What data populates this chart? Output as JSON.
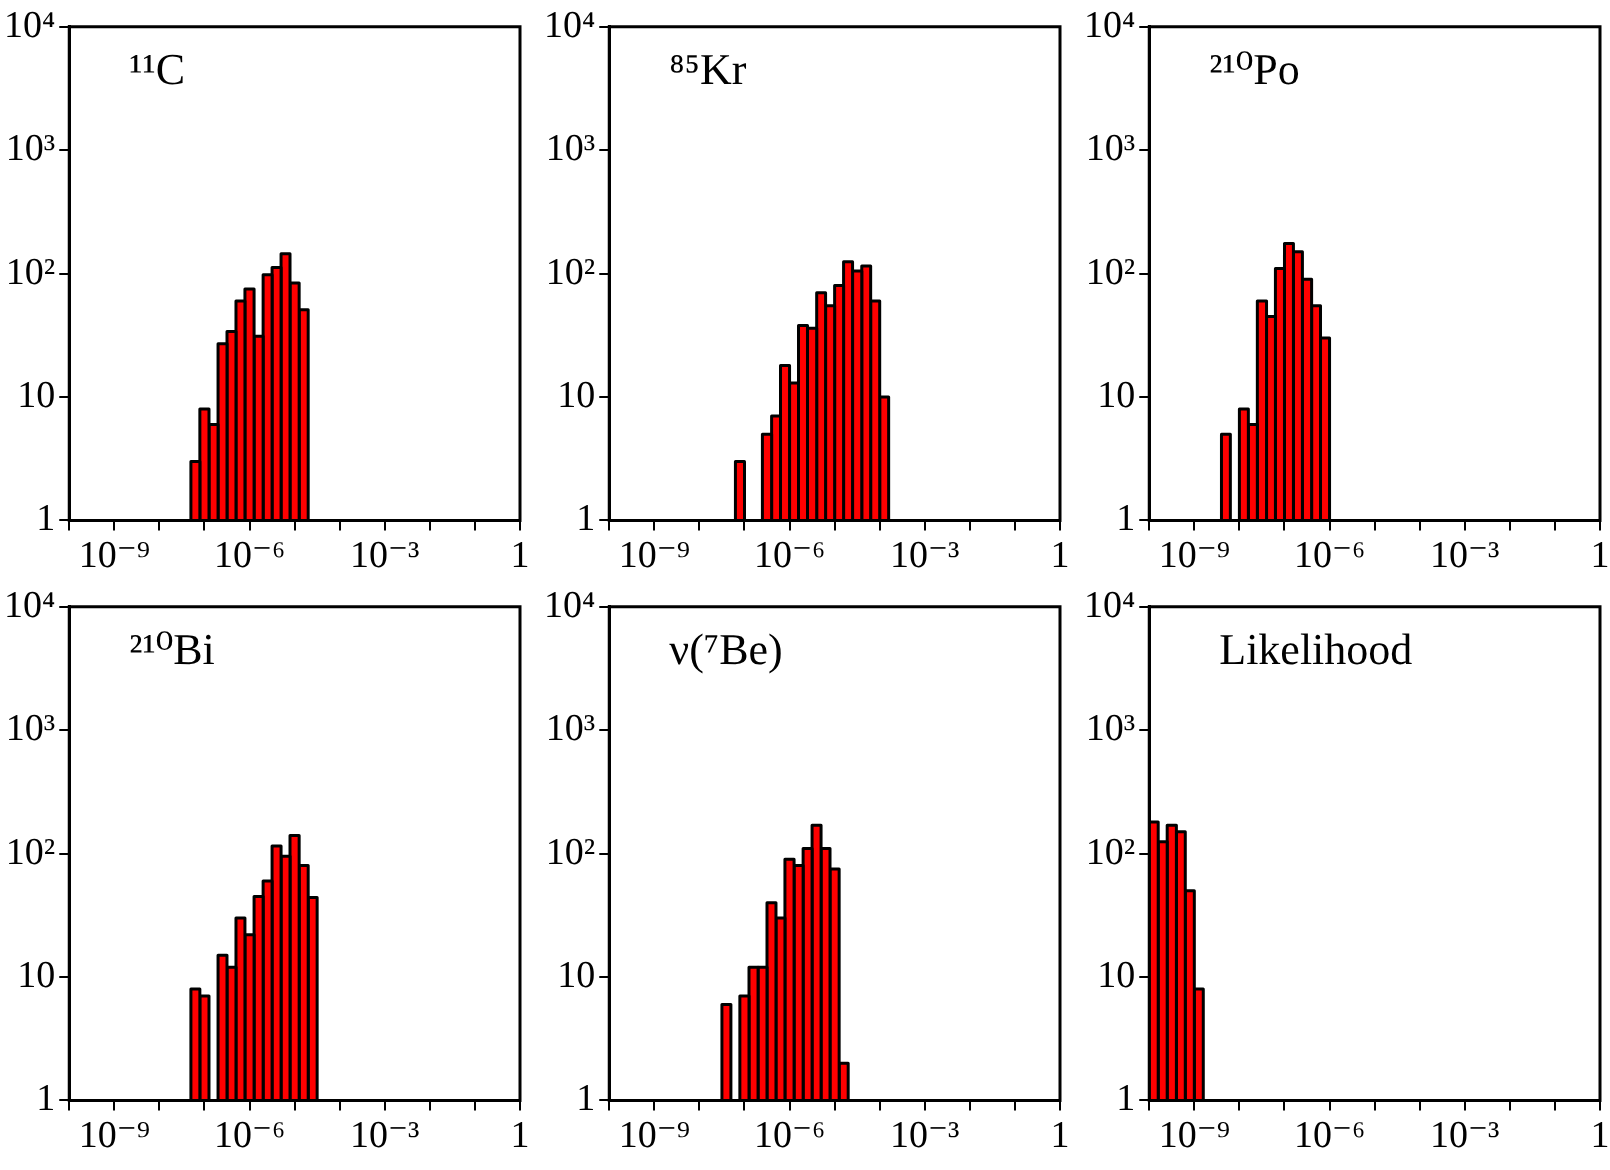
{
  "chart_data": [
    {
      "type": "histogram",
      "annotations": [
        "¹¹C"
      ],
      "color": "#ff0000",
      "log": "xy",
      "grid": false,
      "xlim": [
        1e-10,
        1
      ],
      "ylim": [
        1,
        10000
      ],
      "xticks": [
        {
          "value": 1e-10,
          "label": null
        },
        {
          "value": 1e-09,
          "label": "10⁻⁹"
        },
        {
          "value": 1e-08,
          "label": null
        },
        {
          "value": 1e-07,
          "label": null
        },
        {
          "value": 1e-06,
          "label": "10⁻⁶"
        },
        {
          "value": 1e-05,
          "label": null
        },
        {
          "value": 0.0001,
          "label": null
        },
        {
          "value": 0.001,
          "label": "10⁻³"
        },
        {
          "value": 0.01,
          "label": null
        },
        {
          "value": 0.1,
          "label": null
        },
        {
          "value": 1,
          "label": "1"
        }
      ],
      "yticks": [
        {
          "value": 1,
          "label": "1"
        },
        {
          "value": 10,
          "label": "10"
        },
        {
          "value": 100,
          "label": "10²"
        },
        {
          "value": 1000,
          "label": "10³"
        },
        {
          "value": 10000,
          "label": "10⁴"
        }
      ],
      "bins": [
        5e-08,
        7.9e-08,
        1.26e-07,
        2e-07,
        3.16e-07,
        5e-07,
        7.9e-07,
        1.26e-06,
        2e-06,
        3.16e-06,
        5e-06,
        7.9e-06,
        1.26e-05,
        2e-05
      ],
      "values": [
        3,
        8,
        6,
        27,
        34,
        60,
        75,
        31,
        98,
        112,
        145,
        84,
        51
      ]
    },
    {
      "type": "histogram",
      "annotations": [
        "⁸⁵Kr"
      ],
      "color": "#ff0000",
      "log": "xy",
      "grid": false,
      "xlim": [
        1e-10,
        1
      ],
      "ylim": [
        1,
        10000
      ],
      "xticks": [
        {
          "value": 1e-10,
          "label": null
        },
        {
          "value": 1e-09,
          "label": "10⁻⁹"
        },
        {
          "value": 1e-08,
          "label": null
        },
        {
          "value": 1e-07,
          "label": null
        },
        {
          "value": 1e-06,
          "label": "10⁻⁶"
        },
        {
          "value": 1e-05,
          "label": null
        },
        {
          "value": 0.0001,
          "label": null
        },
        {
          "value": 0.001,
          "label": "10⁻³"
        },
        {
          "value": 0.01,
          "label": null
        },
        {
          "value": 0.1,
          "label": null
        },
        {
          "value": 1,
          "label": "1"
        }
      ],
      "yticks": [
        {
          "value": 1,
          "label": "1"
        },
        {
          "value": 10,
          "label": "10"
        },
        {
          "value": 100,
          "label": "10²"
        },
        {
          "value": 1000,
          "label": "10³"
        },
        {
          "value": 10000,
          "label": "10⁴"
        }
      ],
      "bins": [
        6.3e-08,
        1e-07,
        2.5e-07,
        4e-07,
        6.3e-07,
        1e-06,
        1.58e-06,
        2.5e-06,
        4e-06,
        6.3e-06,
        1e-05,
        1.58e-05,
        2.5e-05,
        4e-05,
        6.3e-05,
        0.0001,
        0.000158
      ],
      "values": [
        3,
        null,
        5,
        7,
        18,
        13,
        38,
        36,
        70,
        55,
        80,
        125,
        105,
        115,
        60,
        10
      ]
    },
    {
      "type": "histogram",
      "annotations": [
        "²¹⁰Po"
      ],
      "color": "#ff0000",
      "log": "xy",
      "grid": false,
      "xlim": [
        1e-10,
        1
      ],
      "ylim": [
        1,
        10000
      ],
      "xticks": [
        {
          "value": 1e-10,
          "label": null
        },
        {
          "value": 1e-09,
          "label": "10⁻⁹"
        },
        {
          "value": 1e-08,
          "label": null
        },
        {
          "value": 1e-07,
          "label": null
        },
        {
          "value": 1e-06,
          "label": "10⁻⁶"
        },
        {
          "value": 1e-05,
          "label": null
        },
        {
          "value": 0.0001,
          "label": null
        },
        {
          "value": 0.001,
          "label": "10⁻³"
        },
        {
          "value": 0.01,
          "label": null
        },
        {
          "value": 0.1,
          "label": null
        },
        {
          "value": 1,
          "label": "1"
        }
      ],
      "yticks": [
        {
          "value": 1,
          "label": "1"
        },
        {
          "value": 10,
          "label": "10"
        },
        {
          "value": 100,
          "label": "10²"
        },
        {
          "value": 1000,
          "label": "10³"
        },
        {
          "value": 10000,
          "label": "10⁴"
        }
      ],
      "bins": [
        4e-09,
        6.3e-09,
        1e-08,
        1.58e-08,
        2.5e-08,
        4e-08,
        6.3e-08,
        1e-07,
        1.58e-07,
        2.5e-07,
        4e-07,
        6.3e-07,
        1e-06
      ],
      "values": [
        5,
        null,
        8,
        6,
        60,
        45,
        110,
        175,
        150,
        90,
        55,
        30
      ]
    },
    {
      "type": "histogram",
      "annotations": [
        "²¹⁰Bi"
      ],
      "color": "#ff0000",
      "log": "xy",
      "grid": false,
      "xlim": [
        1e-10,
        1
      ],
      "ylim": [
        1,
        10000
      ],
      "xticks": [
        {
          "value": 1e-10,
          "label": null
        },
        {
          "value": 1e-09,
          "label": "10⁻⁹"
        },
        {
          "value": 1e-08,
          "label": null
        },
        {
          "value": 1e-07,
          "label": null
        },
        {
          "value": 1e-06,
          "label": "10⁻⁶"
        },
        {
          "value": 1e-05,
          "label": null
        },
        {
          "value": 0.0001,
          "label": null
        },
        {
          "value": 0.001,
          "label": "10⁻³"
        },
        {
          "value": 0.01,
          "label": null
        },
        {
          "value": 0.1,
          "label": null
        },
        {
          "value": 1,
          "label": "1"
        }
      ],
      "yticks": [
        {
          "value": 1,
          "label": "1"
        },
        {
          "value": 10,
          "label": "10"
        },
        {
          "value": 100,
          "label": "10²"
        },
        {
          "value": 1000,
          "label": "10³"
        },
        {
          "value": 10000,
          "label": "10⁴"
        }
      ],
      "bins": [
        5e-08,
        7.9e-08,
        1.26e-07,
        2e-07,
        3.16e-07,
        5e-07,
        7.9e-07,
        1.26e-06,
        2e-06,
        3.16e-06,
        5e-06,
        7.9e-06,
        1.26e-05,
        2e-05,
        3.16e-05
      ],
      "values": [
        8,
        7,
        null,
        15,
        12,
        30,
        22,
        45,
        60,
        115,
        95,
        140,
        80,
        44
      ]
    },
    {
      "type": "histogram",
      "annotations": [
        "ν(⁷Be)"
      ],
      "color": "#ff0000",
      "log": "xy",
      "grid": false,
      "xlim": [
        1e-10,
        1
      ],
      "ylim": [
        1,
        10000
      ],
      "xticks": [
        {
          "value": 1e-10,
          "label": null
        },
        {
          "value": 1e-09,
          "label": "10⁻⁹"
        },
        {
          "value": 1e-08,
          "label": null
        },
        {
          "value": 1e-07,
          "label": null
        },
        {
          "value": 1e-06,
          "label": "10⁻⁶"
        },
        {
          "value": 1e-05,
          "label": null
        },
        {
          "value": 0.0001,
          "label": null
        },
        {
          "value": 0.001,
          "label": "10⁻³"
        },
        {
          "value": 0.01,
          "label": null
        },
        {
          "value": 0.1,
          "label": null
        },
        {
          "value": 1,
          "label": "1"
        }
      ],
      "yticks": [
        {
          "value": 1,
          "label": "1"
        },
        {
          "value": 10,
          "label": "10"
        },
        {
          "value": 100,
          "label": "10²"
        },
        {
          "value": 1000,
          "label": "10³"
        },
        {
          "value": 10000,
          "label": "10⁴"
        }
      ],
      "bins": [
        3.16e-08,
        5e-08,
        7.9e-08,
        1.26e-07,
        2e-07,
        3.16e-07,
        5e-07,
        7.9e-07,
        1.26e-06,
        2e-06,
        3.16e-06,
        5e-06,
        7.9e-06,
        1.26e-05,
        2e-05
      ],
      "values": [
        6,
        null,
        7,
        12,
        12,
        40,
        30,
        90,
        80,
        110,
        170,
        110,
        75,
        2
      ]
    },
    {
      "type": "histogram",
      "annotations": [
        "Likelihood"
      ],
      "color": "#ff0000",
      "log": "xy",
      "grid": false,
      "xlim": [
        1e-10,
        1
      ],
      "ylim": [
        1,
        10000
      ],
      "xticks": [
        {
          "value": 1e-10,
          "label": null
        },
        {
          "value": 1e-09,
          "label": "10⁻⁹"
        },
        {
          "value": 1e-08,
          "label": null
        },
        {
          "value": 1e-07,
          "label": null
        },
        {
          "value": 1e-06,
          "label": "10⁻⁶"
        },
        {
          "value": 1e-05,
          "label": null
        },
        {
          "value": 0.0001,
          "label": null
        },
        {
          "value": 0.001,
          "label": "10⁻³"
        },
        {
          "value": 0.01,
          "label": null
        },
        {
          "value": 0.1,
          "label": null
        },
        {
          "value": 1,
          "label": "1"
        }
      ],
      "yticks": [
        {
          "value": 1,
          "label": "1"
        },
        {
          "value": 10,
          "label": "10"
        },
        {
          "value": 100,
          "label": "10²"
        },
        {
          "value": 1000,
          "label": "10³"
        },
        {
          "value": 10000,
          "label": "10⁴"
        }
      ],
      "bins": [
        1e-10,
        1.58e-10,
        2.5e-10,
        4e-10,
        6.3e-10,
        1e-09,
        1.58e-09
      ],
      "values": [
        180,
        125,
        170,
        150,
        50,
        8
      ]
    }
  ]
}
